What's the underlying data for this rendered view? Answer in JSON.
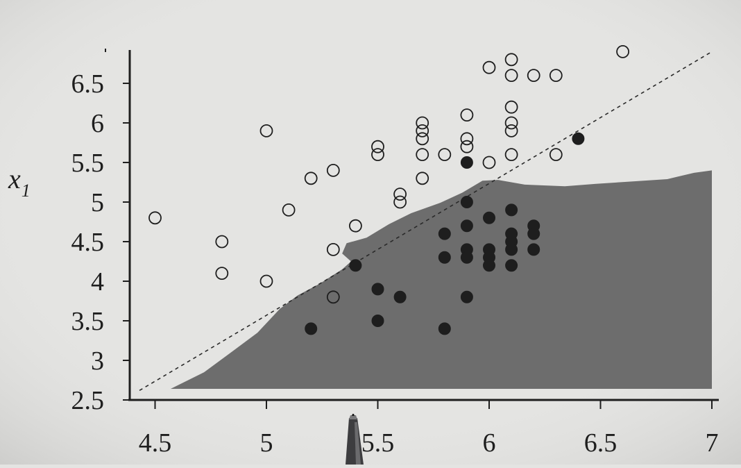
{
  "chart_data": {
    "type": "scatter",
    "title": "",
    "xlabel": "",
    "ylabel": "x",
    "ylabel_subscript": "1",
    "xlim": [
      4.4,
      7.05
    ],
    "ylim": [
      2.5,
      6.9
    ],
    "xticks": [
      4.5,
      5,
      5.5,
      6,
      6.5,
      7
    ],
    "xtick_labels": [
      "4.5",
      "5",
      "5.5",
      "6",
      "6.5",
      "7"
    ],
    "yticks": [
      2.5,
      3,
      3.5,
      4,
      4.5,
      5,
      5.5,
      6,
      6.5
    ],
    "ytick_labels": [
      "2.5",
      "3",
      "3.5",
      "4",
      "4.5",
      "5",
      "5.5",
      "6",
      "6.5"
    ],
    "grid": false,
    "legend": "none",
    "colors": {
      "background": "#e4e4e2",
      "region": "#6d6d6d",
      "ink": "#1e1e1e"
    },
    "series": [
      {
        "marker": "open-circle",
        "points": [
          [
            4.5,
            4.8
          ],
          [
            4.8,
            4.5
          ],
          [
            4.8,
            4.1
          ],
          [
            5.0,
            5.9
          ],
          [
            5.0,
            4.0
          ],
          [
            5.1,
            4.9
          ],
          [
            5.2,
            5.3
          ],
          [
            5.3,
            5.4
          ],
          [
            5.3,
            4.4
          ],
          [
            5.3,
            3.8
          ],
          [
            5.4,
            4.7
          ],
          [
            5.5,
            5.7
          ],
          [
            5.5,
            5.6
          ],
          [
            5.6,
            5.1
          ],
          [
            5.6,
            5.0
          ],
          [
            5.7,
            6.0
          ],
          [
            5.7,
            5.9
          ],
          [
            5.7,
            5.8
          ],
          [
            5.7,
            5.6
          ],
          [
            5.7,
            5.3
          ],
          [
            5.8,
            5.6
          ],
          [
            5.9,
            6.1
          ],
          [
            5.9,
            5.8
          ],
          [
            5.9,
            5.7
          ],
          [
            6.0,
            6.7
          ],
          [
            6.0,
            5.5
          ],
          [
            6.1,
            6.8
          ],
          [
            6.1,
            6.6
          ],
          [
            6.1,
            6.2
          ],
          [
            6.1,
            6.0
          ],
          [
            6.1,
            5.9
          ],
          [
            6.1,
            5.6
          ],
          [
            6.2,
            6.6
          ],
          [
            6.3,
            6.6
          ],
          [
            6.3,
            5.6
          ],
          [
            6.6,
            6.9
          ]
        ]
      },
      {
        "marker": "filled-circle",
        "points": [
          [
            5.2,
            3.4
          ],
          [
            5.4,
            4.2
          ],
          [
            5.5,
            3.9
          ],
          [
            5.5,
            3.5
          ],
          [
            5.6,
            3.8
          ],
          [
            5.8,
            4.6
          ],
          [
            5.8,
            4.3
          ],
          [
            5.8,
            3.4
          ],
          [
            5.9,
            5.5
          ],
          [
            5.9,
            5.0
          ],
          [
            5.9,
            4.7
          ],
          [
            5.9,
            4.4
          ],
          [
            5.9,
            4.3
          ],
          [
            5.9,
            3.8
          ],
          [
            6.0,
            4.8
          ],
          [
            6.0,
            4.4
          ],
          [
            6.0,
            4.3
          ],
          [
            6.0,
            4.2
          ],
          [
            6.1,
            4.9
          ],
          [
            6.1,
            4.6
          ],
          [
            6.1,
            4.5
          ],
          [
            6.1,
            4.4
          ],
          [
            6.1,
            4.2
          ],
          [
            6.2,
            4.7
          ],
          [
            6.2,
            4.6
          ],
          [
            6.2,
            4.4
          ],
          [
            6.4,
            5.8
          ]
        ]
      }
    ],
    "region": {
      "fill": "shaded",
      "boundary": [
        [
          4.57,
          2.64
        ],
        [
          4.72,
          2.85
        ],
        [
          4.86,
          3.14
        ],
        [
          4.96,
          3.35
        ],
        [
          5.06,
          3.65
        ],
        [
          5.14,
          3.82
        ],
        [
          5.24,
          3.97
        ],
        [
          5.34,
          4.15
        ],
        [
          5.38,
          4.25
        ],
        [
          5.34,
          4.35
        ],
        [
          5.36,
          4.48
        ],
        [
          5.45,
          4.55
        ],
        [
          5.55,
          4.72
        ],
        [
          5.65,
          4.86
        ],
        [
          5.78,
          4.99
        ],
        [
          5.88,
          5.12
        ],
        [
          5.97,
          5.27
        ],
        [
          6.04,
          5.28
        ],
        [
          6.16,
          5.22
        ],
        [
          6.34,
          5.2
        ],
        [
          6.48,
          5.23
        ],
        [
          6.64,
          5.26
        ],
        [
          6.8,
          5.29
        ],
        [
          6.92,
          5.37
        ],
        [
          7.0,
          5.4
        ],
        [
          7.0,
          2.64
        ]
      ]
    },
    "reference_line": {
      "style": "dashed",
      "from": [
        4.43,
        2.62
      ],
      "to": [
        7.0,
        6.9
      ]
    }
  }
}
